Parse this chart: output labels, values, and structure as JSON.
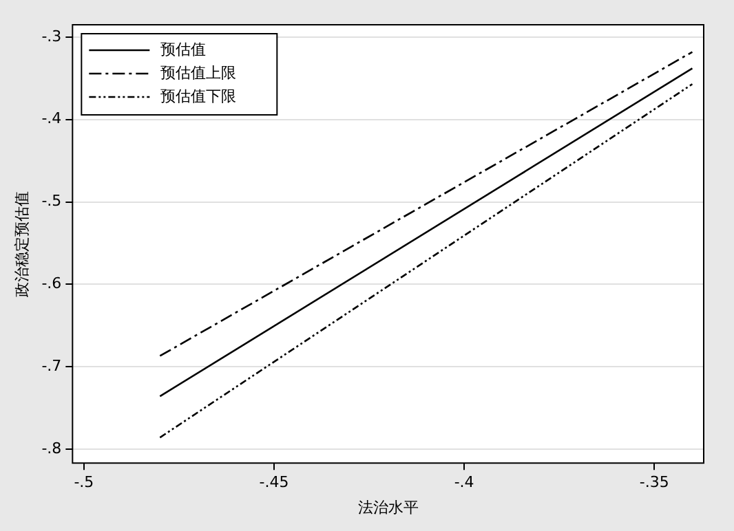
{
  "chart_data": {
    "type": "line",
    "xlabel": "法治水平",
    "ylabel": "政治稳定预估值",
    "x": [
      -0.48,
      -0.34
    ],
    "series": [
      {
        "name": "预估值",
        "color": "#000000",
        "values": [
          -0.736,
          -0.338
        ],
        "line_style": "solid"
      },
      {
        "name": "预估值上限",
        "color": "#000000",
        "values": [
          -0.687,
          -0.318
        ],
        "line_style": "dashed"
      },
      {
        "name": "预估值下限",
        "color": "#000000",
        "values": [
          -0.786,
          -0.357
        ],
        "line_style": "dotted"
      }
    ],
    "xlim": [
      -0.503,
      -0.337
    ],
    "xticks": [
      {
        "value": -0.5,
        "label": "-.5"
      },
      {
        "value": -0.45,
        "label": "-.45"
      },
      {
        "value": -0.4,
        "label": "-.4"
      },
      {
        "value": -0.35,
        "label": "-.35"
      }
    ],
    "ylim": [
      -0.817,
      -0.285
    ],
    "yticks": [
      {
        "value": -0.8,
        "label": "-.8"
      },
      {
        "value": -0.7,
        "label": "-.7"
      },
      {
        "value": -0.6,
        "label": "-.6"
      },
      {
        "value": -0.5,
        "label": "-.5"
      },
      {
        "value": -0.4,
        "label": "-.4"
      },
      {
        "value": -0.3,
        "label": "-.3"
      }
    ],
    "grid": "y",
    "legend": "top left",
    "marker": "none"
  }
}
